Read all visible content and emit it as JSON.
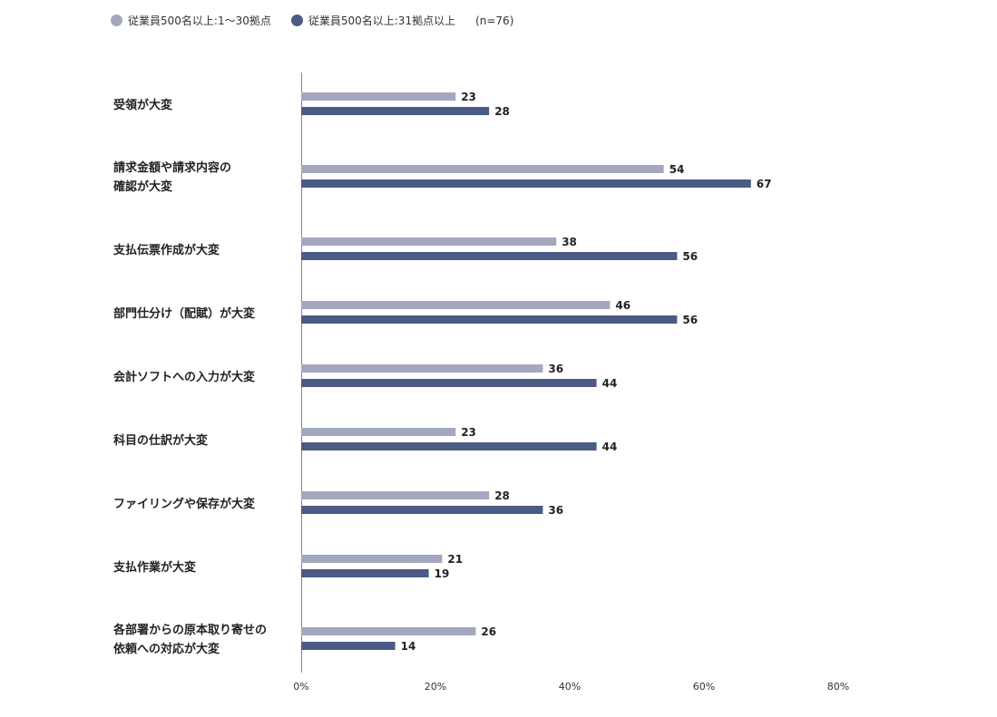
{
  "chart_data": {
    "type": "bar",
    "orientation": "horizontal",
    "note": "(n=76)",
    "categories": [
      "受領が大変",
      "請求金額や請求内容の\n確認が大変",
      "支払伝票作成が大変",
      "部門仕分け（配賦）が大変",
      "会計ソフトへの入力が大変",
      "科目の仕訳が大変",
      "ファイリングや保存が大変",
      "支払作業が大変",
      "各部署からの原本取り寄せの\n依頼への対応が大変"
    ],
    "series": [
      {
        "name": "従業員500名以上:1～30拠点",
        "color": "#a3a8be",
        "values": [
          23,
          54,
          38,
          46,
          36,
          23,
          28,
          21,
          26
        ]
      },
      {
        "name": "従業員500名以上:31拠点以上",
        "color": "#4b5b86",
        "values": [
          28,
          67,
          56,
          56,
          44,
          44,
          36,
          19,
          14
        ]
      }
    ],
    "xlim": [
      0,
      80
    ],
    "xticks": [
      "0%",
      "20%",
      "40%",
      "60%",
      "80%"
    ],
    "grid": false,
    "legend": "top-left"
  }
}
